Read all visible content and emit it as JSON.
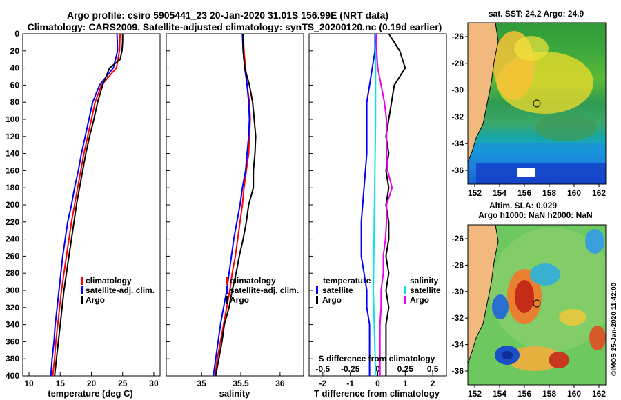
{
  "title_line1": "Argo profile: csiro 5905441_23 20-Jan-2020 31.01S 156.99E (NRT data)",
  "title_line2": "Climatology: CARS2009. Satellite-adjusted climatology: synTS_20200120.nc (0.19d earlier)",
  "colors": {
    "climatology": "#ff0000",
    "satellite": "#0000ff",
    "argo": "#000000",
    "sat_sal": "#00e5ee",
    "argo_sal": "#ee00ee"
  },
  "chart_data": [
    {
      "type": "line",
      "xlabel": "temperature (deg C)",
      "xlim": [
        9,
        31
      ],
      "ylim": [
        0,
        400
      ],
      "xticks": [
        "10",
        "15",
        "20",
        "25",
        "30"
      ],
      "xtick_values": [
        10,
        15,
        20,
        25,
        30
      ],
      "yticks": [
        "0",
        "20",
        "40",
        "60",
        "80",
        "100",
        "120",
        "140",
        "160",
        "180",
        "200",
        "220",
        "240",
        "260",
        "280",
        "300",
        "320",
        "340",
        "360",
        "380",
        "400"
      ],
      "legend": [
        "climatology",
        "satellite-adj. clim.",
        "Argo"
      ],
      "series": [
        {
          "name": "climatology",
          "color_key": "climatology",
          "depth": [
            0,
            20,
            40,
            60,
            80,
            100,
            120,
            140,
            160,
            180,
            200,
            220,
            240,
            260,
            280,
            300,
            320,
            340,
            360,
            380,
            400
          ],
          "values": [
            24.6,
            24.5,
            24.0,
            21.6,
            20.6,
            20.0,
            19.4,
            18.8,
            18.3,
            17.8,
            17.3,
            16.8,
            16.4,
            16.0,
            15.6,
            15.2,
            14.9,
            14.6,
            14.3,
            14.1,
            13.8
          ]
        },
        {
          "name": "satellite-adj. clim.",
          "color_key": "satellite",
          "depth": [
            0,
            20,
            40,
            60,
            80,
            100,
            120,
            140,
            160,
            180,
            200,
            220,
            240,
            260,
            280,
            300,
            320,
            340,
            360,
            380,
            400
          ],
          "values": [
            24.1,
            24.2,
            23.5,
            21.3,
            20.2,
            19.6,
            19.0,
            18.4,
            17.9,
            17.3,
            16.8,
            16.2,
            15.8,
            15.4,
            15.1,
            14.8,
            14.5,
            14.2,
            14.0,
            13.7,
            13.5
          ]
        },
        {
          "name": "Argo",
          "color_key": "argo",
          "depth": [
            0,
            10,
            20,
            30,
            40,
            60,
            80,
            100,
            120,
            140,
            160,
            180,
            200,
            220,
            240,
            260,
            280,
            300,
            320,
            340,
            360,
            380,
            400
          ],
          "values": [
            25.0,
            25.0,
            24.9,
            24.6,
            22.9,
            21.8,
            21.0,
            20.4,
            19.7,
            19.1,
            18.6,
            18.1,
            17.6,
            17.2,
            16.8,
            16.4,
            16.0,
            15.6,
            15.3,
            15.0,
            14.7,
            14.4,
            14.1
          ]
        }
      ]
    },
    {
      "type": "line",
      "xlabel": "salinity",
      "xlim": [
        34.55,
        36.3
      ],
      "ylim": [
        0,
        400
      ],
      "xticks": [
        "35",
        "35.5",
        "36"
      ],
      "xtick_values": [
        35,
        35.5,
        36
      ],
      "legend": [
        "climatology",
        "satellite-adj. clim.",
        "Argo"
      ],
      "series": [
        {
          "name": "climatology",
          "color_key": "climatology",
          "depth": [
            0,
            20,
            40,
            60,
            80,
            100,
            120,
            140,
            160,
            180,
            200,
            220,
            240,
            260,
            280,
            300,
            320,
            340,
            360,
            380,
            400
          ],
          "values": [
            35.53,
            35.54,
            35.56,
            35.58,
            35.61,
            35.62,
            35.61,
            35.6,
            35.57,
            35.54,
            35.52,
            35.49,
            35.46,
            35.43,
            35.39,
            35.36,
            35.32,
            35.28,
            35.24,
            35.2,
            35.17
          ]
        },
        {
          "name": "satellite-adj. clim.",
          "color_key": "satellite",
          "depth": [
            0,
            20,
            40,
            60,
            80,
            100,
            120,
            140,
            160,
            180,
            200,
            220,
            240,
            260,
            280,
            300,
            320,
            340,
            360,
            380,
            400
          ],
          "values": [
            35.52,
            35.53,
            35.55,
            35.58,
            35.6,
            35.61,
            35.6,
            35.58,
            35.56,
            35.52,
            35.49,
            35.45,
            35.41,
            35.38,
            35.35,
            35.32,
            35.28,
            35.24,
            35.21,
            35.18,
            35.15
          ]
        },
        {
          "name": "Argo",
          "color_key": "argo",
          "depth": [
            0,
            20,
            40,
            60,
            80,
            100,
            120,
            140,
            160,
            180,
            200,
            220,
            240,
            260,
            280,
            300,
            320,
            340,
            360,
            380,
            400
          ],
          "values": [
            35.53,
            35.53,
            35.55,
            35.61,
            35.65,
            35.67,
            35.69,
            35.68,
            35.66,
            35.66,
            35.6,
            35.57,
            35.53,
            35.48,
            35.44,
            35.39,
            35.35,
            35.29,
            35.26,
            35.22,
            35.18
          ]
        }
      ]
    },
    {
      "type": "line",
      "xlabel": "T difference from climatology",
      "xlabel_top": "S difference from climatology",
      "xlim": [
        -2.5,
        2.5
      ],
      "ylim": [
        0,
        400
      ],
      "xticks": [
        "-2",
        "-1",
        "0",
        "1",
        "2"
      ],
      "xtick_values": [
        -2,
        -1,
        0,
        1,
        2
      ],
      "sticks": [
        "-0.5",
        "-0.25",
        "0",
        "0.25",
        "0.5"
      ],
      "stick_values": [
        -0.5,
        -0.25,
        0,
        0.25,
        0.5
      ],
      "salinity_scale": 4,
      "legend_left_title": "temperature",
      "legend_right_title": "salinity",
      "legend_left": [
        "satellite",
        "Argo"
      ],
      "legend_right": [
        "satellite",
        "Argo"
      ],
      "series": [
        {
          "name": "T satellite",
          "color_key": "satellite",
          "depth": [
            0,
            20,
            40,
            60,
            80,
            100,
            140,
            180,
            220,
            260,
            280,
            300,
            320,
            340,
            360,
            400
          ],
          "values": [
            -0.1,
            -0.1,
            -0.2,
            -0.3,
            -0.4,
            -0.4,
            -0.4,
            -0.5,
            -0.6,
            -0.6,
            -0.5,
            -0.4,
            -0.4,
            -0.3,
            -0.3,
            -0.3
          ]
        },
        {
          "name": "T Argo",
          "color_key": "argo",
          "depth": [
            0,
            10,
            20,
            40,
            60,
            80,
            100,
            120,
            140,
            160,
            180,
            200,
            220,
            240,
            260,
            280,
            300,
            320,
            340,
            360,
            400
          ],
          "values": [
            0.4,
            0.6,
            0.8,
            1.0,
            0.6,
            0.5,
            0.4,
            0.3,
            0.4,
            0.3,
            0.4,
            0.3,
            0.4,
            0.4,
            0.3,
            0.4,
            0.3,
            0.4,
            0.3,
            0.3,
            0.3
          ]
        },
        {
          "name": "S satellite",
          "color_key": "sat_sal",
          "depth": [
            0,
            40,
            100,
            200,
            300,
            400
          ],
          "values": [
            -0.01,
            -0.02,
            -0.02,
            -0.03,
            -0.04,
            -0.02
          ]
        },
        {
          "name": "S Argo",
          "color_key": "argo_sal",
          "depth": [
            0,
            20,
            40,
            60,
            80,
            100,
            120,
            140,
            160,
            180,
            200,
            220,
            240,
            260,
            280,
            300,
            320,
            340,
            360,
            380,
            400
          ],
          "values": [
            -0.01,
            -0.01,
            0.0,
            0.03,
            0.06,
            0.08,
            0.08,
            0.08,
            0.09,
            0.13,
            0.08,
            0.08,
            0.07,
            0.05,
            0.05,
            0.03,
            0.03,
            0.02,
            0.02,
            0.02,
            0.02
          ]
        }
      ]
    }
  ],
  "maps": [
    {
      "title": "sat. SST: 24.2 Argo: 24.9",
      "xticks": [
        "152",
        "154",
        "156",
        "158",
        "160",
        "162"
      ],
      "yticks": [
        "-26",
        "-28",
        "-30",
        "-32",
        "-34",
        "-36"
      ]
    },
    {
      "title": "Altim. SLA: 0.029",
      "title2": "Argo h1000: NaN h2000: NaN",
      "xticks": [
        "152",
        "154",
        "156",
        "158",
        "160",
        "162"
      ],
      "yticks": [
        "-26",
        "-28",
        "-30",
        "-32",
        "-34",
        "-36"
      ],
      "side_label": "©IMOS 25-Jan-2020 11:42:00"
    }
  ]
}
